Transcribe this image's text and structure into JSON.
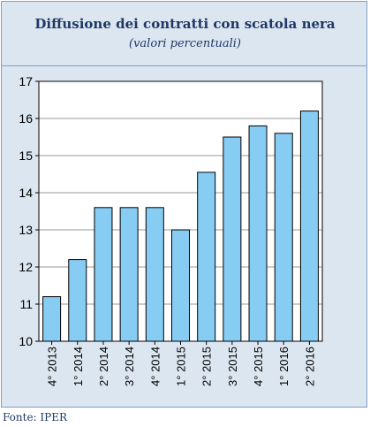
{
  "header": {
    "title": "Diffusione dei contratti con scatola nera",
    "subtitle": "(valori percentuali)"
  },
  "source": "Fonte: IPER",
  "colors": {
    "panel_background": "#dce6f1",
    "bar_fill": "#87cdf3",
    "bar_stroke": "#000000",
    "title_text": "#1f3864"
  },
  "chart_data": {
    "type": "bar",
    "categories": [
      "4° 2013",
      "1° 2014",
      "2° 2014",
      "3° 2014",
      "4° 2014",
      "1° 2015",
      "2° 2015",
      "3° 2015",
      "4° 2015",
      "1° 2016",
      "2° 2016"
    ],
    "values": [
      11.2,
      12.2,
      13.6,
      13.6,
      13.6,
      13.0,
      14.55,
      15.5,
      15.8,
      15.6,
      16.2
    ],
    "title": "Diffusione dei contratti con scatola nera",
    "subtitle": "(valori percentuali)",
    "xlabel": "",
    "ylabel": "",
    "ylim": [
      10,
      17
    ],
    "yticks": [
      10,
      11,
      12,
      13,
      14,
      15,
      16,
      17
    ],
    "grid": true
  }
}
